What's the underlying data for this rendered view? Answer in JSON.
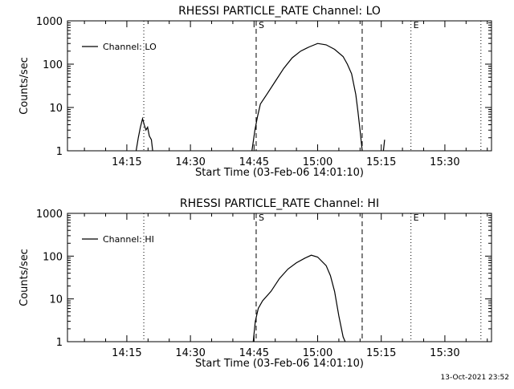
{
  "colors": {
    "background": "#ffffff",
    "foreground": "#000000"
  },
  "footer": {
    "timestamp": "13-Oct-2021 23:52"
  },
  "chart_data": [
    {
      "type": "line",
      "title": "RHESSI PARTICLE_RATE Channel: LO",
      "xlabel": "Start Time (03-Feb-06 14:01:10)",
      "ylabel": "Counts/sec",
      "yscale": "log",
      "ylim": [
        1,
        1000
      ],
      "yticks": [
        {
          "value": 1,
          "label": "1"
        },
        {
          "value": 10,
          "label": "10"
        },
        {
          "value": 100,
          "label": "100"
        },
        {
          "value": 1000,
          "label": "1000"
        }
      ],
      "xlim": [
        "14:01",
        "15:41"
      ],
      "xticks": [
        {
          "time": "14:15",
          "label": "14:15"
        },
        {
          "time": "14:30",
          "label": "14:30"
        },
        {
          "time": "14:45",
          "label": "14:45"
        },
        {
          "time": "15:00",
          "label": "15:00"
        },
        {
          "time": "15:15",
          "label": "15:15"
        },
        {
          "time": "15:30",
          "label": "15:30"
        }
      ],
      "grid": false,
      "legend": {
        "position": "top-left",
        "entries": [
          "Channel: LO"
        ]
      },
      "markers": [
        {
          "time": "14:19",
          "style": "dotted",
          "label": ""
        },
        {
          "time": "14:45.5",
          "style": "dashed",
          "label": "S"
        },
        {
          "time": "15:10.5",
          "style": "dashed",
          "label": ""
        },
        {
          "time": "15:22",
          "style": "dotted",
          "label": "E"
        },
        {
          "time": "15:38.5",
          "style": "dotted",
          "label": ""
        }
      ],
      "series": [
        {
          "name": "Channel: LO",
          "segments": [
            [
              [
                "14:17.2",
                1
              ],
              [
                "14:17.7",
                2
              ],
              [
                "14:18.2",
                3.5
              ],
              [
                "14:18.7",
                5.5
              ],
              [
                "14:19.1",
                4
              ],
              [
                "14:19.5",
                3
              ],
              [
                "14:19.9",
                3.5
              ],
              [
                "14:20.3",
                2.2
              ],
              [
                "14:20.8",
                1.8
              ],
              [
                "14:21.1",
                1
              ]
            ],
            [
              [
                "14:44.5",
                1
              ],
              [
                "14:45.2",
                3
              ],
              [
                "14:45.8",
                6
              ],
              [
                "14:46.5",
                12
              ],
              [
                "14:48",
                20
              ],
              [
                "14:50",
                40
              ],
              [
                "14:52",
                80
              ],
              [
                "14:54",
                140
              ],
              [
                "14:56",
                200
              ],
              [
                "14:58",
                250
              ],
              [
                "15:00",
                300
              ],
              [
                "15:02",
                280
              ],
              [
                "15:04",
                220
              ],
              [
                "15:06",
                150
              ],
              [
                "15:07",
                100
              ],
              [
                "15:08",
                60
              ],
              [
                "15:09",
                20
              ],
              [
                "15:09.5",
                8
              ],
              [
                "15:10",
                3
              ],
              [
                "15:10.5",
                1
              ]
            ],
            [
              [
                "15:15.5",
                1
              ],
              [
                "15:15.8",
                1.8
              ]
            ]
          ]
        }
      ]
    },
    {
      "type": "line",
      "title": "RHESSI PARTICLE_RATE Channel: HI",
      "xlabel": "Start Time (03-Feb-06 14:01:10)",
      "ylabel": "Counts/sec",
      "yscale": "log",
      "ylim": [
        1,
        1000
      ],
      "yticks": [
        {
          "value": 1,
          "label": "1"
        },
        {
          "value": 10,
          "label": "10"
        },
        {
          "value": 100,
          "label": "100"
        },
        {
          "value": 1000,
          "label": "1000"
        }
      ],
      "xlim": [
        "14:01",
        "15:41"
      ],
      "xticks": [
        {
          "time": "14:15",
          "label": "14:15"
        },
        {
          "time": "14:30",
          "label": "14:30"
        },
        {
          "time": "14:45",
          "label": "14:45"
        },
        {
          "time": "15:00",
          "label": "15:00"
        },
        {
          "time": "15:15",
          "label": "15:15"
        },
        {
          "time": "15:30",
          "label": "15:30"
        }
      ],
      "grid": false,
      "legend": {
        "position": "top-left",
        "entries": [
          "Channel: HI"
        ]
      },
      "markers": [
        {
          "time": "14:19",
          "style": "dotted",
          "label": ""
        },
        {
          "time": "14:45.5",
          "style": "dashed",
          "label": "S"
        },
        {
          "time": "15:10.5",
          "style": "dashed",
          "label": ""
        },
        {
          "time": "15:22",
          "style": "dotted",
          "label": "E"
        },
        {
          "time": "15:38.5",
          "style": "dotted",
          "label": ""
        }
      ],
      "series": [
        {
          "name": "Channel: HI",
          "segments": [
            [
              [
                "14:44.8",
                1
              ],
              [
                "14:45.3",
                3
              ],
              [
                "14:46",
                6
              ],
              [
                "14:47",
                9
              ],
              [
                "14:49",
                15
              ],
              [
                "14:51",
                30
              ],
              [
                "14:53",
                50
              ],
              [
                "14:55",
                70
              ],
              [
                "14:57",
                90
              ],
              [
                "14:58.5",
                105
              ],
              [
                "15:00",
                95
              ],
              [
                "15:02",
                60
              ],
              [
                "15:03",
                35
              ],
              [
                "15:04",
                15
              ],
              [
                "15:05",
                4
              ],
              [
                "15:06",
                1.3
              ],
              [
                "15:06.5",
                1
              ]
            ]
          ]
        }
      ]
    }
  ]
}
